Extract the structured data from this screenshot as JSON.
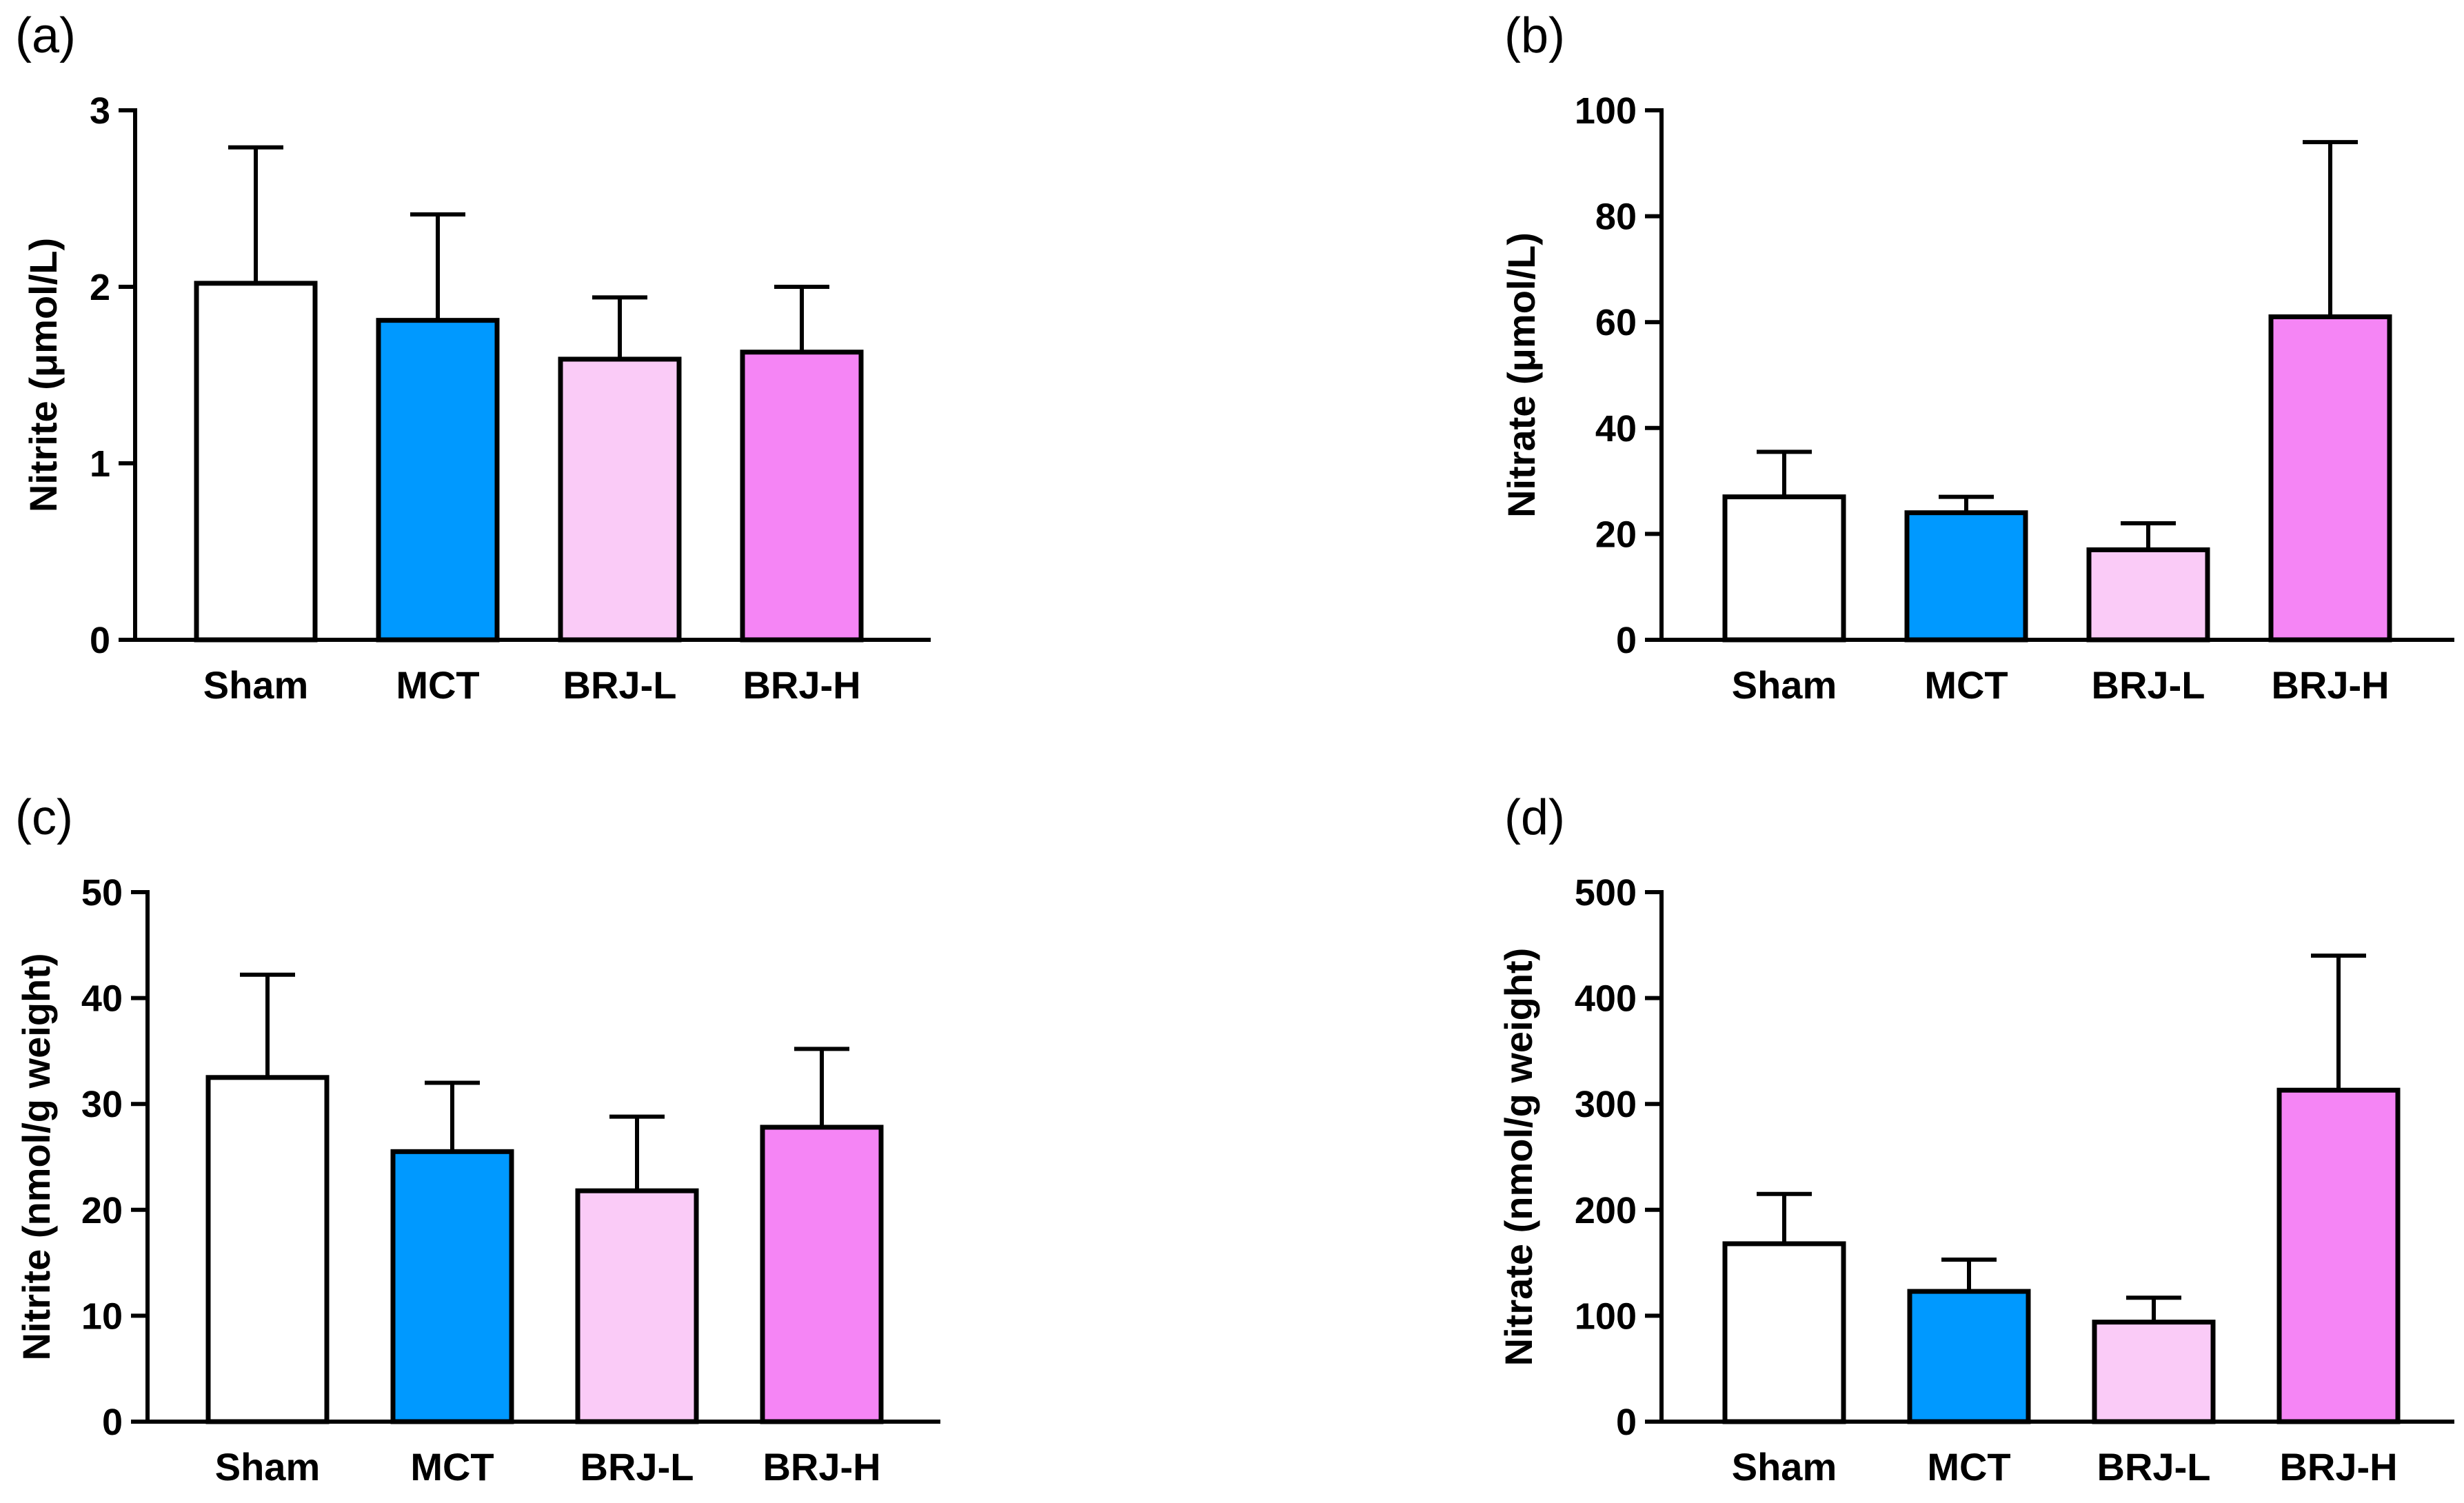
{
  "chart_data": [
    {
      "panel": "(a)",
      "type": "bar",
      "categories": [
        "Sham",
        "MCT",
        "BRJ-L",
        "BRJ-H"
      ],
      "values": [
        2.02,
        1.81,
        1.59,
        1.63
      ],
      "errors": [
        0.77,
        0.6,
        0.35,
        0.37
      ],
      "colors": [
        "#ffffff",
        "#0099ff",
        "#facbf7",
        "#f585f5"
      ],
      "ylabel": "Nitrite (μmol/L)",
      "ylim": [
        0,
        3
      ],
      "yticks": [
        0,
        1,
        2,
        3
      ],
      "xlabel": "",
      "title": ""
    },
    {
      "panel": "(b)",
      "type": "bar",
      "categories": [
        "Sham",
        "MCT",
        "BRJ-L",
        "BRJ-H"
      ],
      "values": [
        27,
        24,
        17,
        61
      ],
      "errors": [
        8.5,
        3,
        5,
        33
      ],
      "colors": [
        "#ffffff",
        "#0099ff",
        "#facbf7",
        "#f585f5"
      ],
      "ylabel": "Nitrate (μmol/L)",
      "ylim": [
        0,
        100
      ],
      "yticks": [
        0,
        20,
        40,
        60,
        80,
        100
      ],
      "xlabel": "",
      "title": ""
    },
    {
      "panel": "(c)",
      "type": "bar",
      "categories": [
        "Sham",
        "MCT",
        "BRJ-L",
        "BRJ-H"
      ],
      "values": [
        32.5,
        25.5,
        21.8,
        27.8
      ],
      "errors": [
        9.7,
        6.5,
        7.0,
        7.4
      ],
      "colors": [
        "#ffffff",
        "#0099ff",
        "#facbf7",
        "#f585f5"
      ],
      "ylabel": "Nitrite (nmol/g weight)",
      "ylim": [
        0,
        50
      ],
      "yticks": [
        0,
        10,
        20,
        30,
        40,
        50
      ],
      "xlabel": "",
      "title": ""
    },
    {
      "panel": "(d)",
      "type": "bar",
      "categories": [
        "Sham",
        "MCT",
        "BRJ-L",
        "BRJ-H"
      ],
      "values": [
        168,
        123,
        94,
        313
      ],
      "errors": [
        47,
        30,
        23,
        127
      ],
      "colors": [
        "#ffffff",
        "#0099ff",
        "#facbf7",
        "#f585f5"
      ],
      "ylabel": "Nitrate (nmol/g weight)",
      "ylim": [
        0,
        500
      ],
      "yticks": [
        0,
        100,
        200,
        300,
        400,
        500
      ],
      "xlabel": "",
      "title": ""
    }
  ]
}
